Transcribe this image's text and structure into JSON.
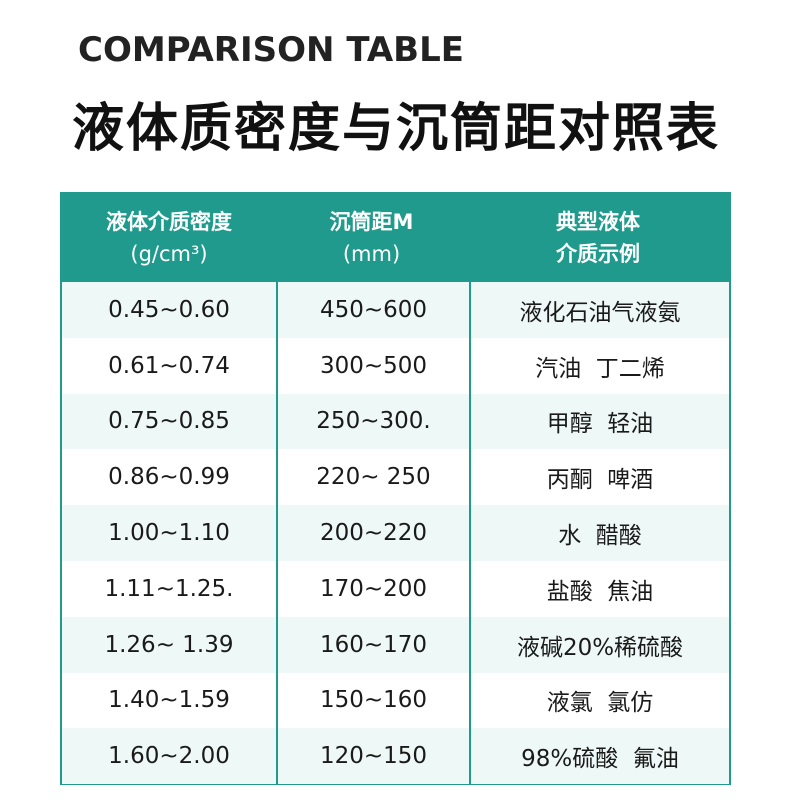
{
  "title_en": "COMPARISON TABLE",
  "title_cn": "液体质密度与沉筒距对照表",
  "colors": {
    "header": "#1f9a8c",
    "stripe": "#eef8f6"
  },
  "headers": [
    {
      "line1": "液体介质密度",
      "line2": "(g/cm³)"
    },
    {
      "line1": "沉筒距M",
      "line2": "(mm)"
    },
    {
      "line1": "典型液体",
      "line2": "介质示例"
    }
  ],
  "rows": [
    [
      "0.45~0.60",
      "450~600",
      "液化石油气液氨"
    ],
    [
      "0.61~0.74",
      "300~500",
      "汽油  丁二烯"
    ],
    [
      "0.75~0.85",
      "250~300.",
      "甲醇  轻油"
    ],
    [
      "0.86~0.99",
      "220~ 250",
      "丙酮  啤酒"
    ],
    [
      "1.00~1.10",
      "200~220",
      "水  醋酸"
    ],
    [
      "1.11~1.25.",
      "170~200",
      "盐酸  焦油"
    ],
    [
      "1.26~ 1.39",
      "160~170",
      "液碱20%稀硫酸"
    ],
    [
      "1.40~1.59",
      "150~160",
      "液氯  氯仿"
    ],
    [
      "1.60~2.00",
      "120~150",
      "98%硫酸  氟油"
    ]
  ]
}
